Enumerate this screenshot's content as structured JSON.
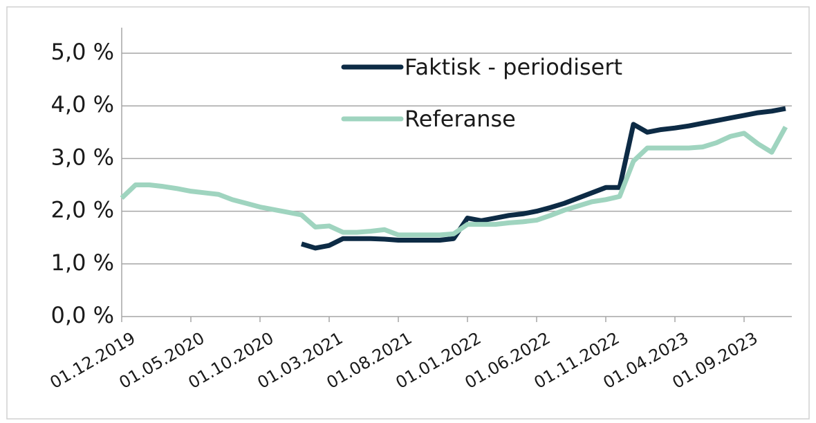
{
  "chart_data": {
    "type": "line",
    "categories": [
      "01.12.2019",
      null,
      null,
      null,
      null,
      "01.05.2020",
      null,
      null,
      null,
      null,
      "01.10.2020",
      null,
      null,
      null,
      null,
      "01.03.2021",
      null,
      null,
      null,
      null,
      "01.08.2021",
      null,
      null,
      null,
      null,
      "01.01.2022",
      null,
      null,
      null,
      null,
      "01.06.2022",
      null,
      null,
      null,
      null,
      "01.11.2022",
      null,
      null,
      null,
      null,
      "01.04.2023",
      null,
      null,
      null,
      null,
      "01.09.2023",
      null,
      null,
      null
    ],
    "series": [
      {
        "name": "Faktisk - periodisert",
        "color": "#0d2b45",
        "values": [
          null,
          null,
          null,
          null,
          null,
          null,
          null,
          null,
          null,
          null,
          null,
          null,
          null,
          1.38,
          1.3,
          1.35,
          1.48,
          1.48,
          1.48,
          1.47,
          1.45,
          1.45,
          1.45,
          1.45,
          1.48,
          1.87,
          1.82,
          1.87,
          1.92,
          1.95,
          2.0,
          2.07,
          2.15,
          2.25,
          2.35,
          2.45,
          2.45,
          3.65,
          3.5,
          3.55,
          3.58,
          3.62,
          3.67,
          3.72,
          3.77,
          3.82,
          3.87,
          3.9,
          3.95
        ]
      },
      {
        "name": "Referanse",
        "color": "#9fd4bf",
        "values": [
          2.25,
          2.5,
          2.5,
          2.47,
          2.43,
          2.38,
          2.35,
          2.32,
          2.22,
          2.15,
          2.08,
          2.03,
          1.98,
          1.93,
          1.7,
          1.72,
          1.6,
          1.6,
          1.62,
          1.65,
          1.55,
          1.55,
          1.55,
          1.55,
          1.57,
          1.75,
          1.75,
          1.75,
          1.78,
          1.8,
          1.83,
          1.92,
          2.02,
          2.1,
          2.18,
          2.22,
          2.28,
          2.95,
          3.2,
          3.2,
          3.2,
          3.2,
          3.22,
          3.3,
          3.42,
          3.48,
          3.28,
          3.12,
          3.6
        ]
      }
    ],
    "ylim": [
      0,
      5
    ],
    "yticks": [
      {
        "value": 0,
        "label": "0,0 %"
      },
      {
        "value": 1,
        "label": "1,0 %"
      },
      {
        "value": 2,
        "label": "2,0 %"
      },
      {
        "value": 3,
        "label": "3,0 %"
      },
      {
        "value": 4,
        "label": "4,0 %"
      },
      {
        "value": 5,
        "label": "5,0 %"
      }
    ],
    "grid": true
  }
}
